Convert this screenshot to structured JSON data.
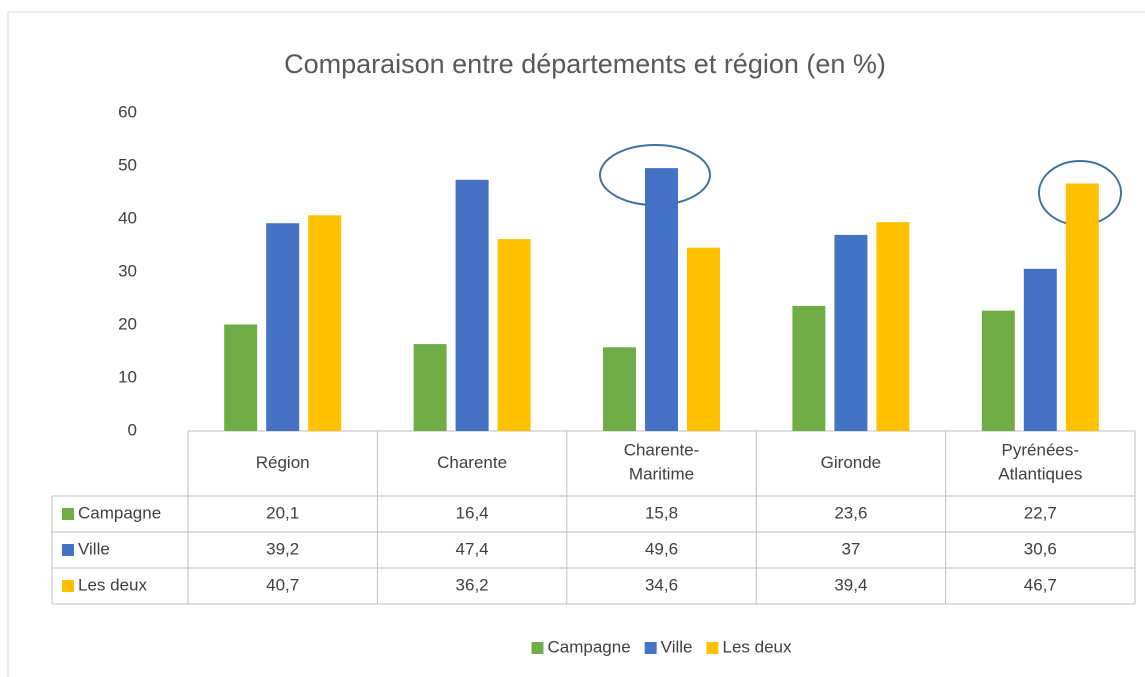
{
  "chart_data": {
    "type": "bar",
    "title": "Comparaison entre départements et région (en %)",
    "categories": [
      "Région",
      "Charente",
      "Charente-Maritime",
      "Gironde",
      "Pyrénées-Atlantiques"
    ],
    "series": [
      {
        "name": "Campagne",
        "color": "#70ad47",
        "values": [
          20.1,
          16.4,
          15.8,
          23.6,
          22.7
        ],
        "value_labels": [
          "20,1",
          "16,4",
          "15,8",
          "23,6",
          "22,7"
        ]
      },
      {
        "name": "Ville",
        "color": "#4472c4",
        "values": [
          39.2,
          47.4,
          49.6,
          37,
          30.6
        ],
        "value_labels": [
          "39,2",
          "47,4",
          "49,6",
          "37",
          "30,6"
        ]
      },
      {
        "name": "Les deux",
        "color": "#ffc000",
        "values": [
          40.7,
          36.2,
          34.6,
          39.4,
          46.7
        ],
        "value_labels": [
          "40,7",
          "36,2",
          "34,6",
          "39,4",
          "46,7"
        ]
      }
    ],
    "ylim": [
      0,
      60
    ],
    "yticks": [
      0,
      10,
      20,
      30,
      40,
      50,
      60
    ],
    "grid": false,
    "legend": "bottom"
  }
}
